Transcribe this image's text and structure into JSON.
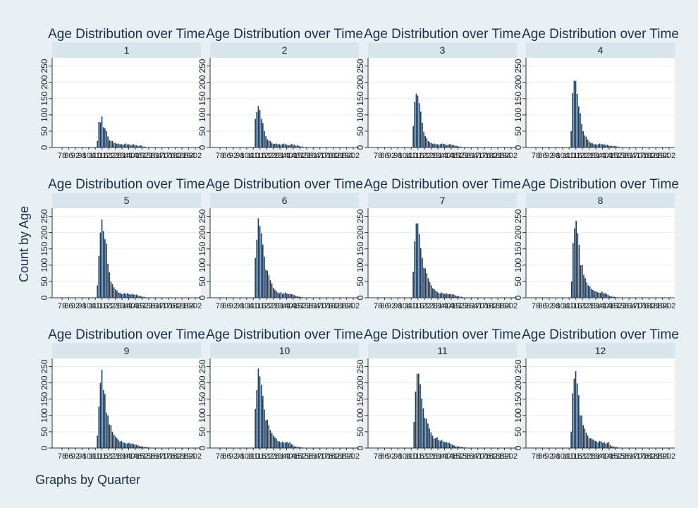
{
  "figure": {
    "ylabel": "Count by Age",
    "note": "Graphs by Quarter",
    "colors": {
      "background": "#e9f0f3",
      "plot": "#ffffff",
      "strip": "#d9e5ec",
      "bar": "#1d3d5c",
      "text": "#1a2f4b",
      "grid": "#e6eef2"
    }
  },
  "chart_data": [
    {
      "type": "bar",
      "title": "Age Distribution over Time",
      "strip": "1",
      "x_ticks": [
        "78",
        "86",
        "92",
        "98",
        "104",
        "110",
        "116",
        "122",
        "128",
        "134",
        "140",
        "146",
        "152",
        "158",
        "164",
        "170",
        "176",
        "182",
        "188",
        "194",
        "202"
      ],
      "yticks": [
        0,
        50,
        100,
        150,
        200,
        250
      ],
      "ylim": [
        0,
        275
      ],
      "values": [
        0,
        0,
        0,
        0,
        0,
        0,
        0,
        0,
        0,
        0,
        0,
        0,
        0,
        0,
        0,
        0,
        0,
        0,
        0,
        0,
        0,
        0,
        0,
        20,
        78,
        77,
        95,
        62,
        59,
        50,
        34,
        22,
        20,
        20,
        14,
        14,
        11,
        12,
        10,
        10,
        9,
        10,
        12,
        9,
        10,
        7,
        8,
        10,
        8,
        7,
        5,
        5,
        7,
        3,
        3,
        2,
        1,
        1,
        0,
        1,
        1,
        0,
        0,
        1,
        0,
        0,
        0,
        0,
        0,
        0,
        0,
        0,
        0,
        0,
        0,
        1,
        0,
        0,
        0,
        0,
        0,
        0,
        0,
        0,
        0,
        0,
        0,
        0,
        0,
        0
      ]
    },
    {
      "type": "bar",
      "title": "Age Distribution over Time",
      "strip": "2",
      "x_ticks": [
        "78",
        "86",
        "92",
        "98",
        "104",
        "110",
        "116",
        "122",
        "128",
        "134",
        "140",
        "146",
        "152",
        "158",
        "164",
        "170",
        "176",
        "182",
        "188",
        "194",
        "202"
      ],
      "yticks": [
        0,
        50,
        100,
        150,
        200,
        250
      ],
      "ylim": [
        0,
        275
      ],
      "values": [
        0,
        0,
        0,
        0,
        0,
        0,
        0,
        0,
        0,
        0,
        0,
        0,
        0,
        0,
        0,
        0,
        0,
        0,
        0,
        0,
        0,
        0,
        0,
        88,
        109,
        127,
        115,
        88,
        75,
        50,
        35,
        25,
        21,
        20,
        14,
        11,
        11,
        12,
        10,
        10,
        9,
        10,
        12,
        10,
        8,
        7,
        8,
        10,
        10,
        8,
        5,
        7,
        5,
        3,
        3,
        2,
        1,
        1,
        0,
        1,
        1,
        0,
        0,
        1,
        0,
        0,
        0,
        0,
        0,
        0,
        0,
        0,
        0,
        0,
        0,
        1,
        0,
        0,
        0,
        0,
        0,
        0,
        0,
        0,
        0,
        0,
        0,
        0,
        0,
        0
      ]
    },
    {
      "type": "bar",
      "title": "Age Distribution over Time",
      "strip": "3",
      "x_ticks": [
        "78",
        "86",
        "92",
        "98",
        "104",
        "110",
        "116",
        "122",
        "128",
        "134",
        "140",
        "146",
        "152",
        "158",
        "164",
        "170",
        "176",
        "182",
        "188",
        "194",
        "202"
      ],
      "yticks": [
        0,
        50,
        100,
        150,
        200,
        250
      ],
      "ylim": [
        0,
        275
      ],
      "values": [
        0,
        0,
        0,
        0,
        0,
        0,
        0,
        0,
        0,
        0,
        0,
        0,
        0,
        0,
        0,
        0,
        0,
        0,
        0,
        0,
        0,
        0,
        0,
        66,
        140,
        165,
        159,
        136,
        110,
        76,
        48,
        35,
        28,
        20,
        16,
        14,
        11,
        12,
        10,
        10,
        9,
        10,
        12,
        11,
        10,
        7,
        8,
        10,
        10,
        8,
        7,
        5,
        5,
        3,
        3,
        2,
        1,
        1,
        0,
        1,
        1,
        0,
        0,
        1,
        0,
        0,
        0,
        0,
        0,
        0,
        0,
        0,
        0,
        0,
        0,
        1,
        0,
        0,
        0,
        0,
        0,
        0,
        0,
        0,
        0,
        0,
        0,
        0,
        0,
        0
      ]
    },
    {
      "type": "bar",
      "title": "Age Distribution over Time",
      "strip": "4",
      "x_ticks": [
        "78",
        "86",
        "92",
        "98",
        "104",
        "110",
        "116",
        "122",
        "128",
        "134",
        "140",
        "146",
        "152",
        "158",
        "164",
        "170",
        "176",
        "182",
        "188",
        "194",
        "202"
      ],
      "yticks": [
        0,
        50,
        100,
        150,
        200,
        250
      ],
      "ylim": [
        0,
        275
      ],
      "values": [
        0,
        0,
        0,
        0,
        0,
        0,
        0,
        0,
        0,
        0,
        0,
        0,
        0,
        0,
        0,
        0,
        0,
        0,
        0,
        0,
        0,
        0,
        0,
        50,
        167,
        205,
        204,
        165,
        126,
        105,
        72,
        50,
        37,
        33,
        24,
        18,
        14,
        13,
        10,
        10,
        9,
        10,
        12,
        10,
        10,
        9,
        8,
        8,
        6,
        5,
        5,
        4,
        5,
        3,
        3,
        2,
        1,
        1,
        0,
        1,
        1,
        0,
        0,
        1,
        0,
        0,
        0,
        0,
        0,
        0,
        0,
        0,
        0,
        0,
        0,
        1,
        0,
        0,
        0,
        0,
        0,
        0,
        0,
        0,
        0,
        0,
        0,
        0,
        0,
        0
      ]
    },
    {
      "type": "bar",
      "title": "Age Distribution over Time",
      "strip": "5",
      "x_ticks": [
        "78",
        "86",
        "92",
        "98",
        "104",
        "110",
        "116",
        "122",
        "128",
        "134",
        "140",
        "146",
        "152",
        "158",
        "164",
        "170",
        "176",
        "182",
        "188",
        "194",
        "202"
      ],
      "yticks": [
        0,
        50,
        100,
        150,
        200,
        250
      ],
      "ylim": [
        0,
        275
      ],
      "values": [
        0,
        0,
        0,
        0,
        0,
        0,
        0,
        0,
        0,
        0,
        0,
        0,
        0,
        0,
        0,
        0,
        0,
        0,
        0,
        0,
        0,
        0,
        0,
        38,
        128,
        200,
        240,
        205,
        180,
        166,
        104,
        78,
        50,
        42,
        32,
        26,
        22,
        16,
        15,
        12,
        12,
        14,
        12,
        14,
        11,
        10,
        12,
        10,
        9,
        10,
        7,
        5,
        5,
        3,
        3,
        2,
        1,
        1,
        0,
        1,
        1,
        0,
        0,
        1,
        0,
        0,
        0,
        0,
        0,
        0,
        0,
        0,
        0,
        0,
        0,
        1,
        0,
        0,
        0,
        0,
        0,
        0,
        0,
        0,
        0,
        0,
        0,
        0,
        0,
        0
      ]
    },
    {
      "type": "bar",
      "title": "Age Distribution over Time",
      "strip": "6",
      "x_ticks": [
        "78",
        "86",
        "92",
        "98",
        "104",
        "110",
        "116",
        "122",
        "128",
        "134",
        "140",
        "146",
        "152",
        "158",
        "164",
        "170",
        "176",
        "182",
        "188",
        "194",
        "202"
      ],
      "yticks": [
        0,
        50,
        100,
        150,
        200,
        250
      ],
      "ylim": [
        0,
        275
      ],
      "values": [
        0,
        0,
        0,
        0,
        0,
        0,
        0,
        0,
        0,
        0,
        0,
        0,
        0,
        0,
        0,
        0,
        0,
        0,
        0,
        0,
        0,
        0,
        0,
        122,
        178,
        244,
        220,
        198,
        163,
        126,
        86,
        83,
        70,
        54,
        44,
        30,
        25,
        20,
        16,
        14,
        17,
        12,
        14,
        16,
        13,
        11,
        12,
        11,
        10,
        8,
        5,
        5,
        3,
        3,
        2,
        1,
        1,
        0,
        1,
        1,
        0,
        0,
        1,
        0,
        0,
        0,
        0,
        0,
        0,
        0,
        0,
        0,
        0,
        0,
        1,
        0,
        0,
        0,
        0,
        0,
        0,
        0,
        0,
        0,
        0,
        0,
        0,
        0,
        0,
        0
      ]
    },
    {
      "type": "bar",
      "title": "Age Distribution over Time",
      "strip": "7",
      "x_ticks": [
        "78",
        "86",
        "92",
        "98",
        "104",
        "110",
        "116",
        "122",
        "128",
        "134",
        "140",
        "146",
        "152",
        "158",
        "164",
        "170",
        "176",
        "182",
        "188",
        "194",
        "202"
      ],
      "yticks": [
        0,
        50,
        100,
        150,
        200,
        250
      ],
      "ylim": [
        0,
        275
      ],
      "values": [
        0,
        0,
        0,
        0,
        0,
        0,
        0,
        0,
        0,
        0,
        0,
        0,
        0,
        0,
        0,
        0,
        0,
        0,
        0,
        0,
        0,
        0,
        0,
        80,
        173,
        228,
        228,
        196,
        152,
        122,
        92,
        90,
        75,
        60,
        48,
        38,
        29,
        26,
        22,
        18,
        14,
        14,
        16,
        13,
        12,
        14,
        11,
        11,
        12,
        10,
        10,
        7,
        5,
        5,
        3,
        3,
        2,
        1,
        1,
        0,
        1,
        1,
        0,
        0,
        1,
        0,
        0,
        0,
        0,
        0,
        0,
        0,
        0,
        0,
        0,
        0,
        1,
        0,
        0,
        0,
        0,
        0,
        0,
        0,
        0,
        0,
        0,
        0,
        0,
        0
      ]
    },
    {
      "type": "bar",
      "title": "Age Distribution over Time",
      "strip": "8",
      "x_ticks": [
        "78",
        "86",
        "92",
        "98",
        "104",
        "110",
        "116",
        "122",
        "128",
        "134",
        "140",
        "146",
        "152",
        "158",
        "164",
        "170",
        "176",
        "182",
        "188",
        "194",
        "202"
      ],
      "yticks": [
        0,
        50,
        100,
        150,
        200,
        250
      ],
      "ylim": [
        0,
        275
      ],
      "values": [
        0,
        0,
        0,
        0,
        0,
        0,
        0,
        0,
        0,
        0,
        0,
        0,
        0,
        0,
        0,
        0,
        0,
        0,
        0,
        0,
        0,
        0,
        0,
        50,
        168,
        213,
        236,
        198,
        162,
        100,
        100,
        70,
        60,
        47,
        38,
        35,
        27,
        24,
        20,
        20,
        17,
        16,
        15,
        19,
        14,
        14,
        12,
        9,
        5,
        5,
        3,
        3,
        2,
        1,
        1,
        0,
        1,
        1,
        0,
        0,
        1,
        0,
        0,
        0,
        0,
        0,
        0,
        0,
        0,
        0,
        0,
        0,
        1,
        0,
        0,
        0,
        0,
        0,
        0,
        0,
        0,
        0,
        0,
        0,
        0,
        0,
        0,
        0,
        0
      ]
    },
    {
      "type": "bar",
      "title": "Age Distribution over Time",
      "strip": "9",
      "x_ticks": [
        "78",
        "86",
        "92",
        "98",
        "104",
        "110",
        "116",
        "122",
        "128",
        "134",
        "140",
        "146",
        "152",
        "158",
        "164",
        "170",
        "176",
        "182",
        "188",
        "194",
        "202"
      ],
      "yticks": [
        0,
        50,
        100,
        150,
        200,
        250
      ],
      "ylim": [
        0,
        275
      ],
      "values": [
        0,
        0,
        0,
        0,
        0,
        0,
        0,
        0,
        0,
        0,
        0,
        0,
        0,
        0,
        0,
        0,
        0,
        0,
        0,
        0,
        0,
        0,
        0,
        38,
        127,
        200,
        240,
        178,
        166,
        108,
        100,
        72,
        70,
        50,
        41,
        36,
        30,
        25,
        20,
        22,
        18,
        16,
        14,
        14,
        16,
        13,
        14,
        12,
        11,
        10,
        8,
        6,
        5,
        5,
        3,
        3,
        2,
        2,
        1,
        1,
        0,
        1,
        1,
        0,
        0,
        1,
        0,
        0,
        0,
        0,
        0,
        0,
        0,
        0,
        0,
        0,
        0,
        1,
        0,
        0,
        0,
        0,
        0,
        0,
        0,
        0,
        0,
        0,
        0,
        0
      ]
    },
    {
      "type": "bar",
      "title": "Age Distribution over Time",
      "strip": "10",
      "x_ticks": [
        "78",
        "86",
        "92",
        "98",
        "104",
        "110",
        "116",
        "122",
        "128",
        "134",
        "140",
        "146",
        "152",
        "158",
        "164",
        "170",
        "176",
        "182",
        "188",
        "194",
        "202"
      ],
      "yticks": [
        0,
        50,
        100,
        150,
        200,
        250
      ],
      "ylim": [
        0,
        275
      ],
      "values": [
        0,
        0,
        0,
        0,
        0,
        0,
        0,
        0,
        0,
        0,
        0,
        0,
        0,
        0,
        0,
        0,
        0,
        0,
        0,
        0,
        0,
        0,
        0,
        120,
        178,
        244,
        220,
        194,
        160,
        118,
        85,
        87,
        70,
        55,
        46,
        38,
        33,
        29,
        22,
        20,
        17,
        20,
        16,
        17,
        19,
        15,
        18,
        12,
        10,
        5,
        5,
        3,
        3,
        2,
        2,
        1,
        1,
        0,
        1,
        1,
        0,
        0,
        1,
        0,
        0,
        0,
        0,
        0,
        0,
        0,
        0,
        0,
        0,
        0,
        1,
        0,
        0,
        0,
        0,
        0,
        0,
        0,
        0,
        0,
        0,
        0,
        0,
        0,
        0,
        0
      ]
    },
    {
      "type": "bar",
      "title": "Age Distribution over Time",
      "strip": "11",
      "x_ticks": [
        "78",
        "86",
        "92",
        "98",
        "104",
        "110",
        "116",
        "122",
        "128",
        "134",
        "140",
        "146",
        "152",
        "158",
        "164",
        "170",
        "176",
        "182",
        "188",
        "194",
        "202"
      ],
      "yticks": [
        0,
        50,
        100,
        150,
        200,
        250
      ],
      "ylim": [
        0,
        275
      ],
      "values": [
        0,
        0,
        0,
        0,
        0,
        0,
        0,
        0,
        0,
        0,
        0,
        0,
        0,
        0,
        0,
        0,
        0,
        0,
        0,
        0,
        0,
        0,
        0,
        80,
        173,
        228,
        228,
        196,
        152,
        122,
        92,
        90,
        75,
        60,
        48,
        38,
        29,
        30,
        33,
        25,
        22,
        25,
        20,
        18,
        18,
        16,
        16,
        12,
        10,
        8,
        5,
        5,
        5,
        3,
        3,
        2,
        2,
        1,
        1,
        0,
        1,
        1,
        0,
        0,
        1,
        0,
        0,
        0,
        0,
        0,
        0,
        0,
        0,
        0,
        0,
        0,
        1,
        0,
        0,
        0,
        0,
        0,
        0,
        0,
        0,
        0,
        0,
        0
      ]
    },
    {
      "type": "bar",
      "title": "Age Distribution over Time",
      "strip": "12",
      "x_ticks": [
        "78",
        "86",
        "92",
        "98",
        "104",
        "110",
        "116",
        "122",
        "128",
        "134",
        "140",
        "146",
        "152",
        "158",
        "164",
        "170",
        "176",
        "182",
        "188",
        "194",
        "202"
      ],
      "yticks": [
        0,
        50,
        100,
        150,
        200,
        250
      ],
      "ylim": [
        0,
        275
      ],
      "values": [
        0,
        0,
        0,
        0,
        0,
        0,
        0,
        0,
        0,
        0,
        0,
        0,
        0,
        0,
        0,
        0,
        0,
        0,
        0,
        0,
        0,
        0,
        0,
        50,
        168,
        213,
        236,
        198,
        162,
        100,
        100,
        70,
        60,
        47,
        38,
        30,
        30,
        27,
        25,
        22,
        20,
        17,
        22,
        20,
        16,
        18,
        13,
        16,
        18,
        9,
        5,
        5,
        3,
        3,
        2,
        1,
        1,
        0,
        1,
        1,
        0,
        0,
        1,
        0,
        0,
        0,
        0,
        0,
        0,
        0,
        0,
        0,
        0,
        0,
        1,
        0,
        0,
        0,
        0,
        0,
        0,
        0,
        0,
        0,
        0,
        0,
        0,
        0,
        0,
        0
      ]
    }
  ]
}
